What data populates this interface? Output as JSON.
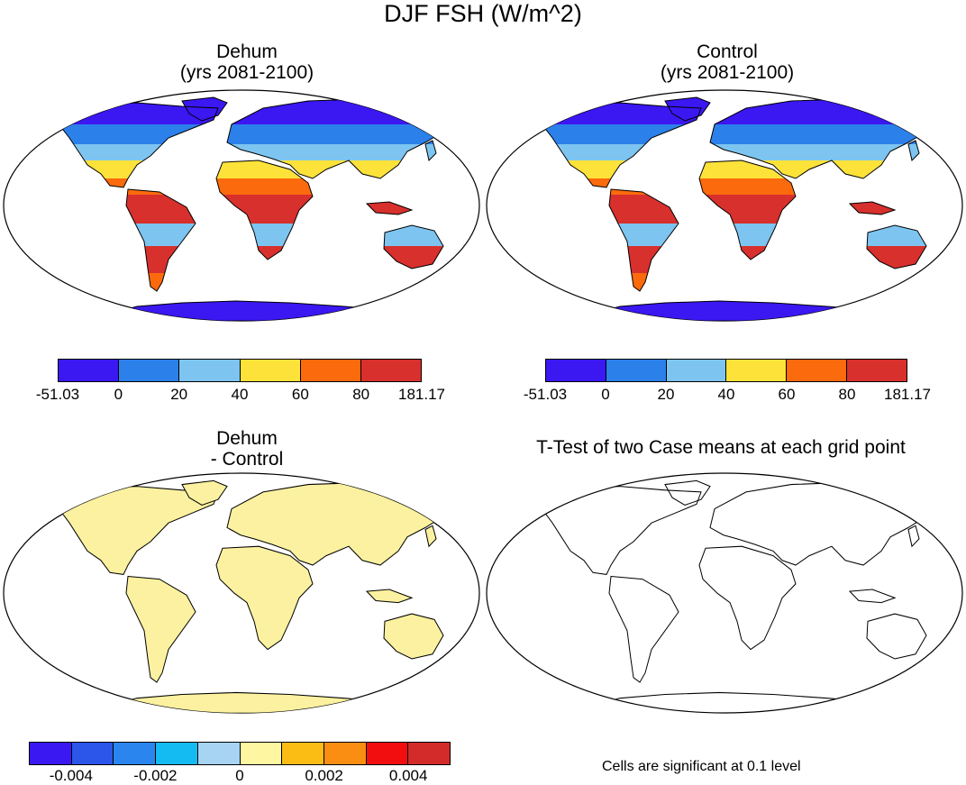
{
  "figure_title": "DJF FSH (W/m^2)",
  "panels": {
    "dehum": {
      "title_line1": "Dehum",
      "title_line2": "(yrs 2081-2100)"
    },
    "control": {
      "title_line1": "Control",
      "title_line2": "(yrs 2081-2100)"
    },
    "diff": {
      "title_line1": "Dehum",
      "title_line2": "- Control"
    },
    "ttest": {
      "title": "T-Test of two Case means at each grid point",
      "note": "Cells are significant at 0.1 level"
    }
  },
  "colorbar_main": {
    "colors": [
      "#3b17f2",
      "#2c80ea",
      "#7dc5f0",
      "#fde23a",
      "#fb6a0c",
      "#d7302d"
    ],
    "labels": [
      "-51.03",
      "0",
      "20",
      "40",
      "60",
      "80",
      "181.17"
    ]
  },
  "colorbar_diff": {
    "colors": [
      "#3a18f1",
      "#2c55ea",
      "#2a86ee",
      "#14baf2",
      "#a6d4f2",
      "#fef6a0",
      "#fbbd14",
      "#f98e12",
      "#f20e0e",
      "#d32a2a"
    ],
    "labels": [
      "-0.004",
      "-0.002",
      "0",
      "0.002",
      "0.004"
    ]
  },
  "map_colors": {
    "ocean": "#ffffff",
    "coast": "#000000",
    "diff_land": "#fbf1a0",
    "polar": "#3b17f2",
    "subpolar": "#2c80ea",
    "temperate": "#7dc5f0",
    "warm": "#fde23a",
    "hot": "#fb6a0c",
    "hottest": "#d7302d"
  }
}
